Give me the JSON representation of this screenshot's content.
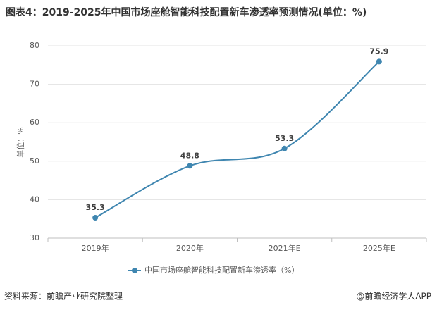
{
  "chart_data": {
    "type": "line",
    "title": "图表4：2019-2025年中国市场座舱智能科技配置新车渗透率预测情况(单位：%)",
    "y_label": "单位：%",
    "categories": [
      "2019年",
      "2020年",
      "2021年E",
      "2025年E"
    ],
    "series": [
      {
        "name": "中国市场座舱智能科技配置新车渗透率（%）",
        "color": "#3f86b0",
        "values": [
          35.3,
          48.8,
          53.3,
          75.9
        ]
      }
    ],
    "ylim": [
      30,
      80
    ],
    "yticks": [
      30,
      40,
      50,
      60,
      70,
      80
    ],
    "grid": true,
    "source": "资料来源：前瞻产业研究院整理",
    "brand": "@前瞻经济学人APP"
  }
}
